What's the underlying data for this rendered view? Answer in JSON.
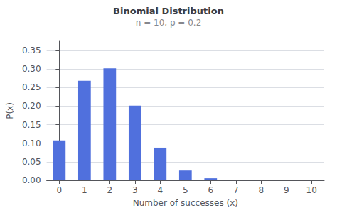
{
  "chart_data": {
    "type": "bar",
    "title": "Binomial Distribution",
    "subtitle": "n = 10, p = 0.2",
    "x": [
      0,
      1,
      2,
      3,
      4,
      5,
      6,
      7,
      8,
      9,
      10
    ],
    "values": [
      0.1074,
      0.2684,
      0.302,
      0.2013,
      0.0881,
      0.0264,
      0.0055,
      0.0008,
      0.0001,
      0.0,
      0.0
    ],
    "x_label": "Number of successes (x)",
    "y_label": "P(x)",
    "xlim": [
      -0.5,
      10.5
    ],
    "xticks": [
      0,
      1,
      2,
      3,
      4,
      5,
      6,
      7,
      8,
      9,
      10
    ],
    "ylim": [
      0,
      0.375
    ],
    "yticks": [
      {
        "value": 0.0,
        "label": "0.00"
      },
      {
        "value": 0.05,
        "label": "0.05"
      },
      {
        "value": 0.1,
        "label": "0.10"
      },
      {
        "value": 0.15,
        "label": "0.15"
      },
      {
        "value": 0.2,
        "label": "0.20"
      },
      {
        "value": 0.25,
        "label": "0.25"
      },
      {
        "value": 0.3,
        "label": "0.30"
      },
      {
        "value": 0.35,
        "label": "0.35"
      }
    ],
    "grid": true
  }
}
